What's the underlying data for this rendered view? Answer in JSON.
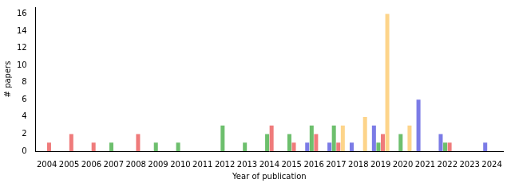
{
  "chart_data": {
    "type": "bar",
    "x_label": "Year of publication",
    "y_label": "# papers",
    "categories": [
      "2004",
      "2005",
      "2006",
      "2007",
      "2008",
      "2009",
      "2010",
      "2011",
      "2012",
      "2013",
      "2014",
      "2015",
      "2016",
      "2017",
      "2018",
      "2019",
      "2020",
      "2021",
      "2022",
      "2023",
      "2024"
    ],
    "series": [
      {
        "color": "#7b7be6",
        "values": [
          0,
          0,
          0,
          0,
          0,
          0,
          0,
          0,
          0,
          0,
          0,
          0,
          1,
          1,
          1,
          3,
          0,
          6,
          2,
          0,
          1
        ]
      },
      {
        "color": "#6dbf6d",
        "values": [
          0,
          0,
          0,
          1,
          0,
          1,
          1,
          0,
          3,
          1,
          2,
          2,
          3,
          3,
          0,
          1,
          2,
          0,
          1,
          0,
          0
        ]
      },
      {
        "color": "#ef7b7b",
        "values": [
          1,
          2,
          1,
          0,
          2,
          0,
          0,
          0,
          0,
          0,
          3,
          1,
          2,
          1,
          0,
          2,
          0,
          0,
          1,
          0,
          0
        ]
      },
      {
        "color": "#fdd48a",
        "values": [
          0,
          0,
          0,
          0,
          0,
          0,
          0,
          0,
          0,
          0,
          0,
          0,
          0,
          3,
          4,
          16,
          3,
          0,
          0,
          0,
          0
        ]
      }
    ],
    "ylim": [
      0,
      16.8
    ],
    "yticks": [
      0,
      2,
      4,
      6,
      8,
      10,
      12,
      14,
      16
    ],
    "grid": false
  }
}
